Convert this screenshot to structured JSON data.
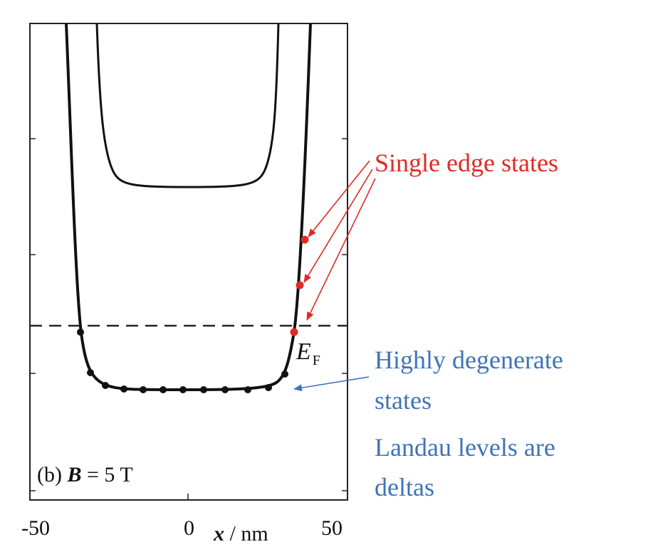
{
  "figure": {
    "panel_label": "(b)",
    "field_symbol": "B",
    "field_value": "= 5 T",
    "x_axis": {
      "label_var": "x",
      "label_unit": "/ nm",
      "ticks": [
        "-50",
        "0",
        "50"
      ]
    },
    "fermi_label": "E",
    "fermi_subscript": "F"
  },
  "annotations": {
    "edge": "Single edge states",
    "degenerate_line1": "Highly degenerate",
    "degenerate_line2": "states",
    "landau_line1": "Landau levels are",
    "landau_line2": "deltas"
  },
  "colors": {
    "edge_annotation": "#e02a24",
    "degenerate_annotation": "#3f73b8",
    "curve": "#111111"
  }
}
